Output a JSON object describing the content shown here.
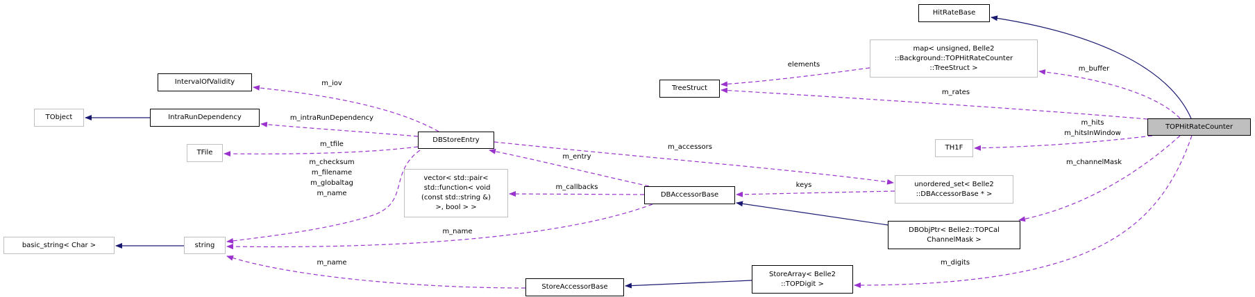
{
  "colors": {
    "inheritance": "#191970",
    "usage": "#9a32cd",
    "focus_fill": "#bfbfbf",
    "undocumented_border": "#bfbfbf"
  },
  "nodes": {
    "hitratebase": "HitRateBase",
    "map": "map< unsigned, Belle2\n::Background::TOPHitRateCounter\n::TreeStruct >",
    "treestruct": "TreeStruct",
    "tophitratecounter": "TOPHitRateCounter",
    "th1f": "TH1F",
    "unordered_set": "unordered_set< Belle2\n::DBAccessorBase * >",
    "dbaccessorbase": "DBAccessorBase",
    "dbobjptr": "DBObjPtr< Belle2::TOPCal\nChannelMask >",
    "storearray": "StoreArray< Belle2\n::TOPDigit >",
    "storeaccessorbase": "StoreAccessorBase",
    "intervalofvalidity": "IntervalOfValidity",
    "tobject": "TObject",
    "intrarundependency": "IntraRunDependency",
    "dbstoreentry": "DBStoreEntry",
    "tfile": "TFile",
    "vector": "vector< std::pair<\n std::function< void\n(const std::string &)\n>, bool > >",
    "basic_string": "basic_string< Char >",
    "string": "string"
  },
  "edge_labels": {
    "m_iov": "m_iov",
    "m_intraRunDependency": "m_intraRunDependency",
    "m_tfile": "m_tfile",
    "string_members": "m_checksum\nm_filename\nm_globaltag\nm_name",
    "m_entry": "m_entry",
    "m_callbacks": "m_callbacks",
    "m_name_dbaccessor": "m_name",
    "m_name_storeaccessor": "m_name",
    "elements": "elements",
    "m_buffer": "m_buffer",
    "m_rates": "m_rates",
    "m_hits": "m_hits\nm_hitsInWindow",
    "m_accessors": "m_accessors",
    "m_channelMask": "m_channelMask",
    "keys": "keys",
    "m_digits": "m_digits"
  }
}
